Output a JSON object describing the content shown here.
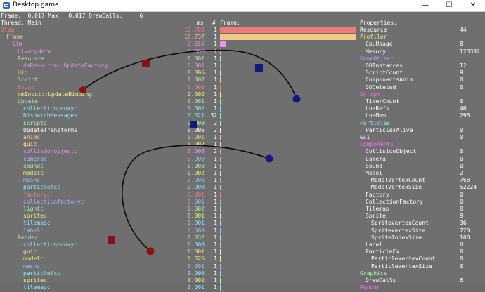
{
  "window": {
    "title": "Desktop game",
    "minimize": "—",
    "maximize": "☐",
    "close": "✕"
  },
  "header": {
    "line1": "Frame:  0.017 Max:  0.017 DrawCalls:     6",
    "line2": "Thread: Main"
  },
  "columns": {
    "ms": "ms",
    "count": "#",
    "frame": "Frame:",
    "properties": "Properties:"
  },
  "scopes": [
    {
      "label": "Step",
      "indent": 0,
      "color": "#f07a7a",
      "ms": "16.783",
      "count": "1",
      "frac": 1.0
    },
    {
      "label": "Frame",
      "indent": 1,
      "color": "#f2c98a",
      "ms": "16.737",
      "count": "1",
      "frac": 0.997
    },
    {
      "label": "Sim",
      "indent": 2,
      "color": "#ee90ee",
      "ms": "0.655",
      "count": "1",
      "frac": 0.039
    },
    {
      "label": "LiveUpdate",
      "indent": 3,
      "color": "#ee90ee",
      "ms": "0.000",
      "count": "1",
      "frac": 0
    },
    {
      "label": "Resource",
      "indent": 3,
      "color": "#a8f0a8",
      "ms": "0.001",
      "count": "1",
      "frac": 0
    },
    {
      "label": "dmResource::UpdateFactory",
      "indent": 4,
      "color": "#ee90ee",
      "ms": "0.001",
      "count": "1",
      "frac": 0
    },
    {
      "label": "Hid",
      "indent": 3,
      "color": "#f0f080",
      "ms": "0.096",
      "count": "1",
      "frac": 0.006
    },
    {
      "label": "Script",
      "indent": 3,
      "color": "#a8f0a8",
      "ms": "0.007",
      "count": "1",
      "frac": 0
    },
    {
      "label": "Sound",
      "indent": 3,
      "color": "#f07a7a",
      "ms": "0.000",
      "count": "1",
      "frac": 0
    },
    {
      "label": "dmInput::UpdateBinding",
      "indent": 3,
      "color": "#f0f080",
      "ms": "0.002",
      "count": "1",
      "frac": 0
    },
    {
      "label": "Update",
      "indent": 3,
      "color": "#a8f0a8",
      "ms": "0.061",
      "count": "1",
      "frac": 0.004
    },
    {
      "label": "collectionproxyc",
      "indent": 4,
      "color": "#80e8ff",
      "ms": "0.002",
      "count": "1",
      "frac": 0
    },
    {
      "label": "DispatchMessages",
      "indent": 4,
      "color": "#80e8ff",
      "ms": "0.021",
      "count": "32",
      "frac": 0.001
    },
    {
      "label": "scriptc",
      "indent": 4,
      "color": "#a8f0a8",
      "ms": "0.009",
      "count": "2",
      "frac": 0
    },
    {
      "label": "UpdateTransforms",
      "indent": 4,
      "color": "#ffffff",
      "ms": "0.005",
      "count": "2",
      "frac": 0
    },
    {
      "label": "animc",
      "indent": 4,
      "color": "#f2c98a",
      "ms": "0.001",
      "count": "1",
      "frac": 0
    },
    {
      "label": "guic",
      "indent": 4,
      "color": "#f0f080",
      "ms": "0.002",
      "count": "1",
      "frac": 0
    },
    {
      "label": "collisionobjectc",
      "indent": 4,
      "color": "#ee90ee",
      "ms": "0.006",
      "count": "2",
      "frac": 0
    },
    {
      "label": "camerac",
      "indent": 4,
      "color": "#a0b8ff",
      "ms": "0.000",
      "count": "1",
      "frac": 0
    },
    {
      "label": "soundc",
      "indent": 4,
      "color": "#a8f0a8",
      "ms": "0.003",
      "count": "1",
      "frac": 0
    },
    {
      "label": "modelc",
      "indent": 4,
      "color": "#f0f080",
      "ms": "0.002",
      "count": "1",
      "frac": 0
    },
    {
      "label": "meshc",
      "indent": 4,
      "color": "#a0b8ff",
      "ms": "0.000",
      "count": "1",
      "frac": 0
    },
    {
      "label": "particlefxc",
      "indent": 4,
      "color": "#80e8ff",
      "ms": "0.000",
      "count": "1",
      "frac": 0
    },
    {
      "label": "factoryc",
      "indent": 4,
      "color": "#f07a7a",
      "ms": "0.001",
      "count": "1",
      "frac": 0
    },
    {
      "label": "collectionfactoryc",
      "indent": 4,
      "color": "#a0b8ff",
      "ms": "0.001",
      "count": "1",
      "frac": 0
    },
    {
      "label": "lightc",
      "indent": 4,
      "color": "#a8f0a8",
      "ms": "0.002",
      "count": "1",
      "frac": 0
    },
    {
      "label": "spritec",
      "indent": 4,
      "color": "#f0f080",
      "ms": "0.001",
      "count": "1",
      "frac": 0
    },
    {
      "label": "tilemapc",
      "indent": 4,
      "color": "#80e8ff",
      "ms": "0.001",
      "count": "1",
      "frac": 0
    },
    {
      "label": "labelc",
      "indent": 4,
      "color": "#a0b8ff",
      "ms": "0.000",
      "count": "1",
      "frac": 0
    },
    {
      "label": "Render",
      "indent": 3,
      "color": "#a8f0a8",
      "ms": "0.032",
      "count": "1",
      "frac": 0.002
    },
    {
      "label": "collectionproxyc",
      "indent": 4,
      "color": "#80e8ff",
      "ms": "0.000",
      "count": "1",
      "frac": 0
    },
    {
      "label": "guic",
      "indent": 4,
      "color": "#f0f080",
      "ms": "0.001",
      "count": "1",
      "frac": 0
    },
    {
      "label": "modelc",
      "indent": 4,
      "color": "#f0f080",
      "ms": "0.026",
      "count": "1",
      "frac": 0.002
    },
    {
      "label": "meshc",
      "indent": 4,
      "color": "#a0b8ff",
      "ms": "0.001",
      "count": "1",
      "frac": 0
    },
    {
      "label": "particlefxc",
      "indent": 4,
      "color": "#80e8ff",
      "ms": "0.000",
      "count": "1",
      "frac": 0
    },
    {
      "label": "spritec",
      "indent": 4,
      "color": "#f0f080",
      "ms": "0.002",
      "count": "1",
      "frac": 0
    },
    {
      "label": "tilemapc",
      "indent": 4,
      "color": "#80e8ff",
      "ms": "0.001",
      "count": "1",
      "frac": 0
    }
  ],
  "properties": [
    {
      "label": "Resource",
      "indent": 0,
      "color": "#ffffff",
      "value": "44"
    },
    {
      "label": "Profiler",
      "indent": 0,
      "color": "#f0f080",
      "value": ""
    },
    {
      "label": "CpuUsage",
      "indent": 1,
      "color": "#ffffff",
      "value": "8"
    },
    {
      "label": "Memory",
      "indent": 1,
      "color": "#ffffff",
      "value": "123392"
    },
    {
      "label": "GameObject",
      "indent": 0,
      "color": "#a0a0ff",
      "value": ""
    },
    {
      "label": "GOInstances",
      "indent": 1,
      "color": "#ffffff",
      "value": "12"
    },
    {
      "label": "ScriptCount",
      "indent": 1,
      "color": "#ffffff",
      "value": "9"
    },
    {
      "label": "ComponentsAnim",
      "indent": 1,
      "color": "#ffffff",
      "value": "0"
    },
    {
      "label": "GODeleted",
      "indent": 1,
      "color": "#ffffff",
      "value": "0"
    },
    {
      "label": "Script",
      "indent": 0,
      "color": "#ff60ff",
      "value": ""
    },
    {
      "label": "TimerCount",
      "indent": 1,
      "color": "#ffffff",
      "value": "0"
    },
    {
      "label": "LuaRefs",
      "indent": 1,
      "color": "#ffffff",
      "value": "46"
    },
    {
      "label": "LuaMem",
      "indent": 1,
      "color": "#ffffff",
      "value": "296"
    },
    {
      "label": "Particles",
      "indent": 0,
      "color": "#80e8ff",
      "value": ""
    },
    {
      "label": "ParticlesAlive",
      "indent": 1,
      "color": "#ffffff",
      "value": "0"
    },
    {
      "label": "Gui",
      "indent": 0,
      "color": "#ffffff",
      "value": "0"
    },
    {
      "label": "Components",
      "indent": 0,
      "color": "#ff60ff",
      "value": ""
    },
    {
      "label": "CollisionObject",
      "indent": 1,
      "color": "#ffffff",
      "value": "0"
    },
    {
      "label": "Camera",
      "indent": 1,
      "color": "#ffffff",
      "value": "0"
    },
    {
      "label": "Sound",
      "indent": 1,
      "color": "#ffffff",
      "value": "0"
    },
    {
      "label": "Model",
      "indent": 1,
      "color": "#ffffff",
      "value": "2"
    },
    {
      "label": "ModelVertexCount",
      "indent": 2,
      "color": "#ffffff",
      "value": "768"
    },
    {
      "label": "ModelVertexSize",
      "indent": 2,
      "color": "#ffffff",
      "value": "52224"
    },
    {
      "label": "Factory",
      "indent": 1,
      "color": "#ffffff",
      "value": "0"
    },
    {
      "label": "CollectionFactory",
      "indent": 1,
      "color": "#ffffff",
      "value": "0"
    },
    {
      "label": "Tilemap",
      "indent": 1,
      "color": "#ffffff",
      "value": "0"
    },
    {
      "label": "Sprite",
      "indent": 1,
      "color": "#ffffff",
      "value": "9"
    },
    {
      "label": "SpriteVertexCount",
      "indent": 2,
      "color": "#ffffff",
      "value": "36"
    },
    {
      "label": "SpriteVertexSize",
      "indent": 2,
      "color": "#ffffff",
      "value": "720"
    },
    {
      "label": "SpriteIndexSize",
      "indent": 2,
      "color": "#ffffff",
      "value": "108"
    },
    {
      "label": "Label",
      "indent": 1,
      "color": "#ffffff",
      "value": "0"
    },
    {
      "label": "ParticleFx",
      "indent": 1,
      "color": "#ffffff",
      "value": "0"
    },
    {
      "label": "ParticleVertexCount",
      "indent": 2,
      "color": "#ffffff",
      "value": "0"
    },
    {
      "label": "ParticleVertexSize",
      "indent": 2,
      "color": "#ffffff",
      "value": "0"
    },
    {
      "label": "Graphics",
      "indent": 0,
      "color": "#a8f0a8",
      "value": ""
    },
    {
      "label": "DrawCalls",
      "indent": 1,
      "color": "#ffffff",
      "value": "6"
    },
    {
      "label": "Render",
      "indent": 0,
      "color": "#ff60ff",
      "value": ""
    }
  ],
  "scene": {
    "curve_color": "#0a0a0a",
    "red_square_color": "#8b1212",
    "blue_square_color": "#141a7a",
    "red_circle_color": "#8b1212",
    "blue_circle_color": "#141a7a"
  }
}
